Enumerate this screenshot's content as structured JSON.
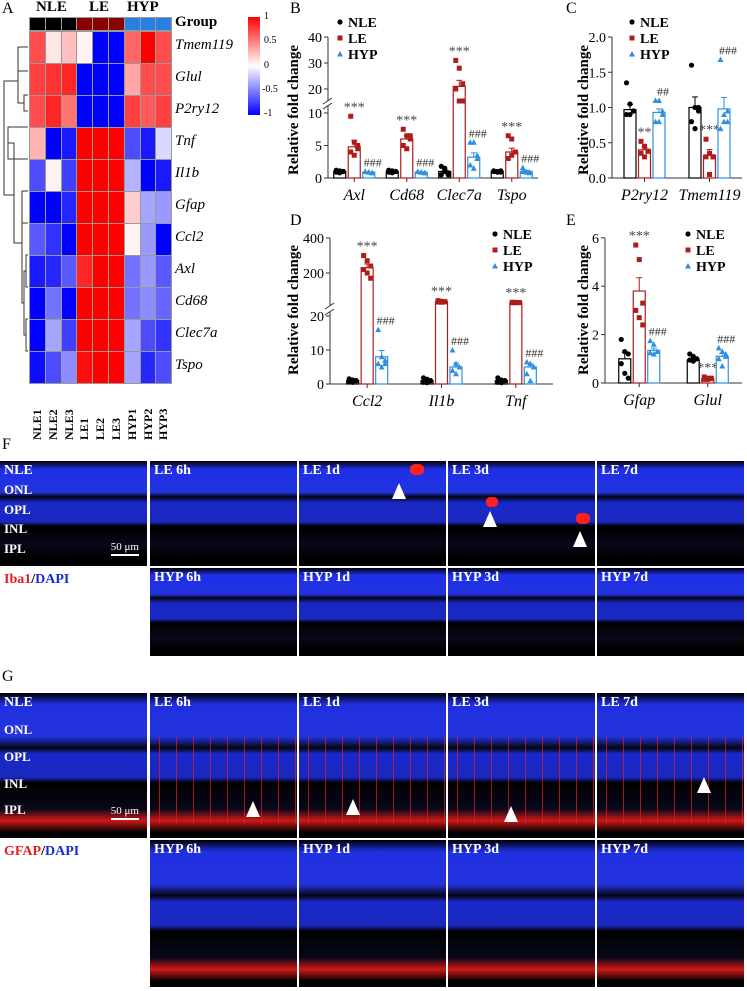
{
  "panel_labels": [
    "A",
    "B",
    "C",
    "D",
    "E",
    "F",
    "G"
  ],
  "colors": {
    "nle": "#000000",
    "le": "#b01c1c",
    "hyp": "#2f8fe0",
    "heat_pos": "#ff0000",
    "heat_neg": "#0000ff",
    "le_group": "#8b0000",
    "hyp_group": "#2b7fe0"
  },
  "heatmap": {
    "group_label": "Group",
    "groups": [
      "NLE",
      "LE",
      "HYP"
    ],
    "samples": [
      "NLE1",
      "NLE2",
      "NLE3",
      "LE1",
      "LE2",
      "LE3",
      "HYP1",
      "HYP2",
      "HYP3"
    ],
    "genes": [
      "Tmem119",
      "Glul",
      "P2ry12",
      "Tnf",
      "Il1b",
      "Gfap",
      "Ccl2",
      "Axl",
      "Cd68",
      "Clec7a",
      "Tspo"
    ],
    "values": [
      [
        0.7,
        0.1,
        0.25,
        0.05,
        -1,
        -1,
        0.6,
        1,
        0.7
      ],
      [
        0.75,
        0.8,
        0.85,
        -1,
        -1,
        -1,
        0.35,
        0.7,
        0.7
      ],
      [
        0.7,
        0.85,
        0.55,
        -1,
        -1,
        -1,
        0.75,
        0.65,
        0.75
      ],
      [
        0.3,
        -1,
        -0.9,
        1,
        1,
        1,
        -0.7,
        -0.9,
        -0.15
      ],
      [
        -0.7,
        0.05,
        -0.75,
        1,
        1,
        1,
        -0.3,
        -1,
        -0.9
      ],
      [
        -1,
        -1,
        -0.85,
        1,
        1,
        1,
        0.2,
        -0.35,
        -0.4
      ],
      [
        -0.65,
        -0.8,
        -1,
        1,
        1,
        1,
        0.05,
        -0.4,
        -1
      ],
      [
        -0.9,
        -0.85,
        -0.65,
        0.85,
        1,
        1,
        -0.55,
        -0.4,
        -0.65
      ],
      [
        -1,
        -0.55,
        -1,
        1,
        1,
        1,
        -0.55,
        -0.45,
        -0.6
      ],
      [
        -1,
        -0.35,
        -0.75,
        1,
        1,
        1,
        -0.35,
        -0.7,
        -0.8
      ],
      [
        -0.95,
        -0.7,
        -0.45,
        0.95,
        1,
        1,
        -0.35,
        -0.85,
        -0.7
      ]
    ],
    "colorbar_ticks": [
      "1",
      "0.5",
      "0",
      "-0.5",
      "-1"
    ]
  },
  "chart_data": [
    {
      "id": "B",
      "type": "bar",
      "ylabel": "Relative fold change",
      "series_names": [
        "NLE",
        "LE",
        "HYP"
      ],
      "yticks_lower": [
        "0",
        "5",
        "10"
      ],
      "yticks_upper": [
        "20",
        "30",
        "40"
      ],
      "ylim": [
        0,
        40
      ],
      "axis_break": [
        10,
        20
      ],
      "categories": [
        "Axl",
        "Cd68",
        "Clec7a",
        "Tspo"
      ],
      "groups": [
        {
          "means": [
            1.0,
            4.8,
            0.9
          ],
          "points": [
            [
              1.2,
              1.1,
              1,
              0.9,
              0.8,
              1
            ],
            [
              9.5,
              5.5,
              4.5,
              4,
              3.5,
              5
            ],
            [
              1,
              0.9,
              0.8,
              1,
              0.9,
              0.8
            ]
          ],
          "sig": [
            "",
            "***",
            "###"
          ]
        },
        {
          "means": [
            1.0,
            6.0,
            0.9
          ],
          "points": [
            [
              1.2,
              1.1,
              1,
              0.9,
              0.8,
              1
            ],
            [
              7.5,
              6.5,
              6,
              5,
              4.5,
              6.5
            ],
            [
              1,
              0.9,
              0.8,
              1,
              0.9,
              0.8
            ]
          ],
          "sig": [
            "",
            "***",
            "###"
          ]
        },
        {
          "means": [
            1.0,
            21,
            3.2
          ],
          "points": [
            [
              1.8,
              1.5,
              0.5,
              0.5,
              1,
              0.8
            ],
            [
              31,
              28,
              22,
              20,
              18,
              17
            ],
            [
              5.5,
              5.5,
              3.5,
              2,
              1.5,
              3
            ]
          ],
          "sig": [
            "",
            "***",
            "###"
          ]
        },
        {
          "means": [
            1.0,
            4.0,
            1.0
          ],
          "points": [
            [
              1.1,
              1,
              0.9,
              1,
              0.9,
              1.1
            ],
            [
              6.5,
              6,
              4,
              3,
              3.5,
              4
            ],
            [
              1.6,
              1,
              0.8,
              1,
              0.9,
              0.9
            ]
          ],
          "sig": [
            "",
            "***",
            "###"
          ]
        }
      ]
    },
    {
      "id": "C",
      "type": "bar",
      "ylabel": "Relative fold change",
      "series_names": [
        "NLE",
        "LE",
        "HYP"
      ],
      "yticks": [
        "0.0",
        "0.5",
        "1.0",
        "1.5",
        "2.0"
      ],
      "ylim": [
        0,
        2
      ],
      "categories": [
        "P2ry12",
        "Tmem119"
      ],
      "groups": [
        {
          "means": [
            0.97,
            0.4,
            0.93
          ],
          "points": [
            [
              1.35,
              1.05,
              0.95,
              0.9,
              0.9,
              0.95
            ],
            [
              0.52,
              0.45,
              0.38,
              0.35,
              0.3,
              0.38
            ],
            [
              1.1,
              1.1,
              0.95,
              0.8,
              0.8,
              0.9
            ]
          ],
          "sig": [
            "",
            "**",
            "##"
          ]
        },
        {
          "means": [
            1.0,
            0.32,
            0.98
          ],
          "points": [
            [
              1.6,
              1.0,
              1.0,
              0.8,
              0.7,
              0.95
            ],
            [
              0.55,
              0.35,
              0.3,
              0.3,
              0.05,
              0.3
            ],
            [
              1.68,
              0.9,
              0.8,
              0.7,
              0.8,
              0.95
            ]
          ],
          "sig": [
            "",
            "***",
            "###"
          ]
        }
      ]
    },
    {
      "id": "D",
      "type": "bar",
      "ylabel": "Relative fold change",
      "series_names": [
        "NLE",
        "LE",
        "HYP"
      ],
      "yticks_lower": [
        "0",
        "10",
        "20"
      ],
      "yticks_upper": [
        "200",
        "400"
      ],
      "ylim": [
        0,
        400
      ],
      "axis_break": [
        20,
        30
      ],
      "categories": [
        "Ccl2",
        "Il1b",
        "Tnf"
      ],
      "groups": [
        {
          "means": [
            1,
            230,
            8
          ],
          "points": [
            [
              1.5,
              1.2,
              1,
              0.8,
              0.5,
              1
            ],
            [
              300,
              270,
              240,
              220,
              200,
              170
            ],
            [
              16,
              8,
              7,
              6,
              5,
              6
            ]
          ],
          "sig": [
            "",
            "***",
            "###"
          ]
        },
        {
          "means": [
            1,
            36,
            5
          ],
          "points": [
            [
              1.8,
              1.4,
              1,
              0.5,
              0.4,
              1
            ],
            [
              42,
              38,
              36,
              34,
              33,
              35
            ],
            [
              10,
              6,
              5,
              4,
              3,
              5
            ]
          ],
          "sig": [
            "",
            "***",
            "###"
          ]
        },
        {
          "means": [
            1,
            31,
            5
          ],
          "points": [
            [
              1.8,
              1.2,
              1,
              0.5,
              0.4,
              1
            ],
            [
              33,
              32,
              31,
              30,
              30,
              31
            ],
            [
              6.5,
              6,
              5,
              3,
              1,
              5
            ]
          ],
          "sig": [
            "",
            "***",
            "###"
          ]
        }
      ]
    },
    {
      "id": "E",
      "type": "bar",
      "ylabel": "Relative fold change",
      "series_names": [
        "NLE",
        "LE",
        "HYP"
      ],
      "yticks": [
        "0",
        "2",
        "4",
        "6"
      ],
      "ylim": [
        0,
        6
      ],
      "categories": [
        "Gfap",
        "Glul"
      ],
      "groups": [
        {
          "means": [
            1.0,
            3.8,
            1.35
          ],
          "points": [
            [
              1.8,
              1.3,
              1.2,
              0.8,
              0.4,
              0.2
            ],
            [
              5.7,
              5.1,
              3.3,
              3.0,
              2.7,
              2.4
            ],
            [
              1.75,
              1.6,
              1.3,
              1.25,
              1.2,
              1.3
            ]
          ],
          "sig": [
            "",
            "***",
            "###"
          ]
        },
        {
          "means": [
            0.95,
            0.18,
            1.1
          ],
          "points": [
            [
              1.2,
              1.1,
              1.0,
              0.95,
              0.9,
              1.0
            ],
            [
              0.25,
              0.2,
              0.18,
              0.15,
              0.15,
              0.2
            ],
            [
              1.45,
              1.3,
              1.2,
              1.0,
              0.7,
              1.1
            ]
          ],
          "sig": [
            "",
            "***",
            "###"
          ]
        }
      ]
    }
  ],
  "panel_F": {
    "stain_a": "Iba1",
    "stain_sep": "/",
    "stain_b": "DAPI",
    "layers": [
      "NLE",
      "ONL",
      "OPL",
      "INL",
      "IPL"
    ],
    "scale_bar": "50 μm",
    "top_row": [
      "LE 6h",
      "LE 1d",
      "LE 3d",
      "LE 7d"
    ],
    "bottom_row": [
      "HYP 6h",
      "HYP 1d",
      "HYP 3d",
      "HYP 7d"
    ]
  },
  "panel_G": {
    "stain_a": "GFAP",
    "stain_sep": "/",
    "stain_b": "DAPI",
    "layers": [
      "NLE",
      "ONL",
      "OPL",
      "INL",
      "IPL"
    ],
    "scale_bar": "50 μm",
    "top_row": [
      "LE 6h",
      "LE 1d",
      "LE 3d",
      "LE 7d"
    ],
    "bottom_row": [
      "HYP 6h",
      "HYP 1d",
      "HYP 3d",
      "HYP 7d"
    ]
  }
}
